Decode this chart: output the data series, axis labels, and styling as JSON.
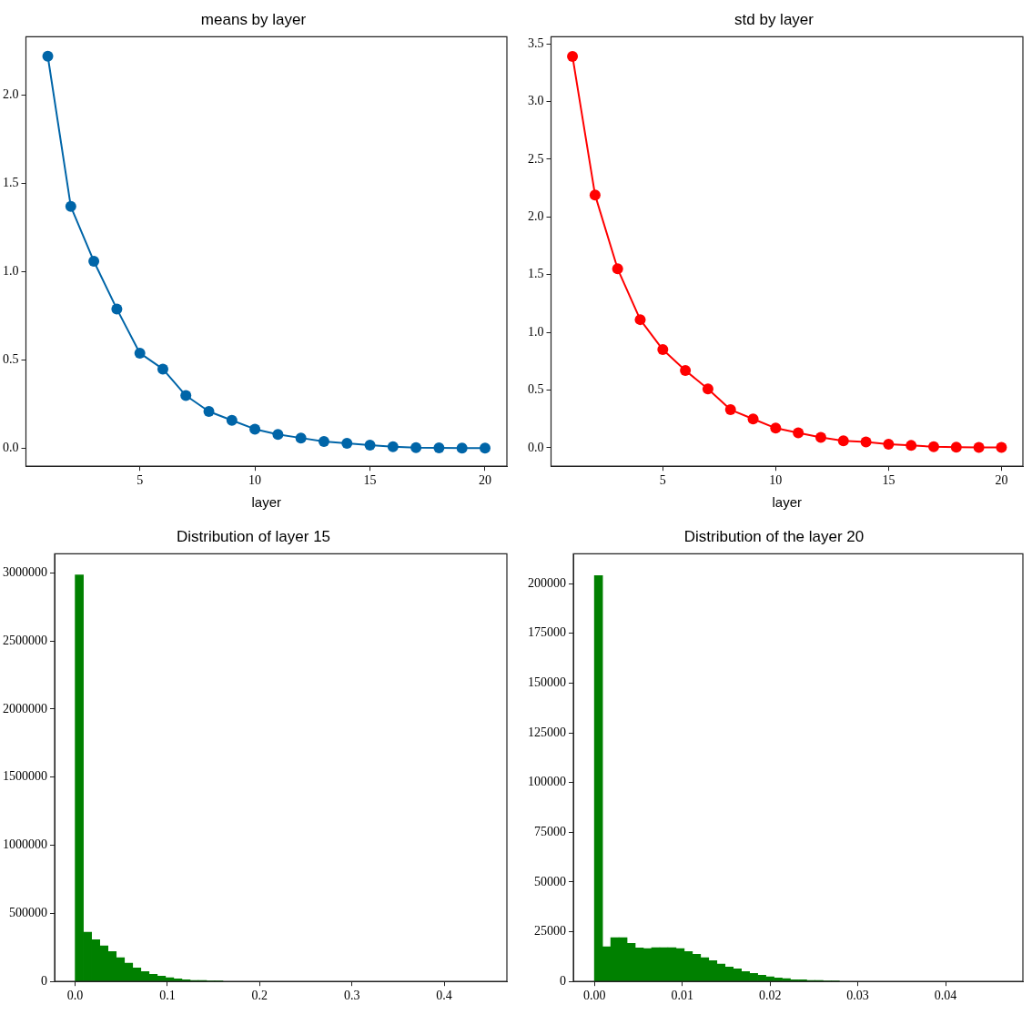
{
  "chart_data": [
    {
      "type": "line",
      "title": "means by layer",
      "xlabel": "layer",
      "x": [
        1,
        2,
        3,
        4,
        5,
        6,
        7,
        8,
        9,
        10,
        11,
        12,
        13,
        14,
        15,
        16,
        17,
        18,
        19,
        20
      ],
      "values": [
        2.22,
        1.37,
        1.06,
        0.79,
        0.54,
        0.45,
        0.3,
        0.21,
        0.16,
        0.11,
        0.08,
        0.06,
        0.04,
        0.03,
        0.02,
        0.01,
        0.005,
        0.004,
        0.003,
        0.003
      ],
      "color": "#0065a8",
      "marker": "circle",
      "line_style": "solid",
      "xlim": [
        0.05,
        20.95
      ],
      "xticks": [
        5,
        10,
        15,
        20
      ],
      "ylim": [
        -0.1,
        2.33
      ],
      "yticks": [
        {
          "value": 0,
          "label": "0.0"
        },
        {
          "value": 0.5,
          "label": "0.5"
        },
        {
          "value": 1,
          "label": "1.0"
        },
        {
          "value": 1.5,
          "label": "1.5"
        },
        {
          "value": 2,
          "label": "2.0"
        }
      ]
    },
    {
      "type": "line",
      "title": "std by layer",
      "xlabel": "layer",
      "x": [
        1,
        2,
        3,
        4,
        5,
        6,
        7,
        8,
        9,
        10,
        11,
        12,
        13,
        14,
        15,
        16,
        17,
        18,
        19,
        20
      ],
      "values": [
        3.39,
        2.19,
        1.55,
        1.11,
        0.85,
        0.67,
        0.51,
        0.33,
        0.25,
        0.17,
        0.13,
        0.09,
        0.06,
        0.05,
        0.03,
        0.02,
        0.01,
        0.005,
        0.004,
        0.003
      ],
      "color": "#ff0000",
      "marker": "circle",
      "line_style": "solid",
      "xlim": [
        0.05,
        20.95
      ],
      "xticks": [
        5,
        10,
        15,
        20
      ],
      "ylim": [
        -0.16,
        3.56
      ],
      "yticks": [
        {
          "value": 0,
          "label": "0.0"
        },
        {
          "value": 0.5,
          "label": "0.5"
        },
        {
          "value": 1,
          "label": "1.0"
        },
        {
          "value": 1.5,
          "label": "1.5"
        },
        {
          "value": 2,
          "label": "2.0"
        },
        {
          "value": 2.5,
          "label": "2.5"
        },
        {
          "value": 3,
          "label": "3.0"
        },
        {
          "value": 3.5,
          "label": "3.5"
        }
      ]
    },
    {
      "type": "histogram",
      "title": "Distribution of layer 15",
      "color": "#008000",
      "bins": [
        0,
        0.0089,
        0.0178,
        0.0267,
        0.0356,
        0.0445,
        0.0534,
        0.0623,
        0.0712,
        0.0801,
        0.089,
        0.0979,
        0.1068,
        0.1157,
        0.1246,
        0.1335,
        0.1424,
        0.1513,
        0.1602
      ],
      "values": [
        2985000,
        361000,
        307000,
        261000,
        220000,
        174000,
        134000,
        100000,
        73000,
        53000,
        40000,
        27000,
        20000,
        13000,
        7000,
        7000,
        1000,
        1000
      ],
      "xlim": [
        -0.0223,
        0.468
      ],
      "xticks": [
        {
          "value": 0,
          "label": "0.0"
        },
        {
          "value": 0.1,
          "label": "0.1"
        },
        {
          "value": 0.2,
          "label": "0.2"
        },
        {
          "value": 0.3,
          "label": "0.3"
        },
        {
          "value": 0.4,
          "label": "0.4"
        }
      ],
      "ylim": [
        0,
        3140000
      ],
      "yticks": [
        0,
        500000,
        1000000,
        1500000,
        2000000,
        2500000,
        3000000
      ]
    },
    {
      "type": "histogram",
      "title": "Distribution of the layer 20",
      "color": "#008000",
      "bins": [
        0,
        0.00093,
        0.00186,
        0.00279,
        0.00372,
        0.00465,
        0.00558,
        0.00651,
        0.00744,
        0.00837,
        0.0093,
        0.01023,
        0.01116,
        0.01209,
        0.01302,
        0.01395,
        0.01488,
        0.01581,
        0.01674,
        0.01767,
        0.0186,
        0.01953,
        0.02046,
        0.02139,
        0.02232,
        0.02325,
        0.02418,
        0.02511,
        0.02604,
        0.02697,
        0.0279
      ],
      "values": [
        204000,
        17400,
        22000,
        22000,
        19200,
        16900,
        16500,
        17000,
        17000,
        17000,
        16500,
        15100,
        13700,
        11900,
        10500,
        8700,
        7300,
        6400,
        5000,
        4100,
        3200,
        2300,
        1800,
        1400,
        900,
        900,
        500,
        500,
        300,
        200
      ],
      "xlim": [
        -0.0024,
        0.0488
      ],
      "xticks": [
        {
          "value": 0,
          "label": "0.00"
        },
        {
          "value": 0.01,
          "label": "0.01"
        },
        {
          "value": 0.02,
          "label": "0.02"
        },
        {
          "value": 0.03,
          "label": "0.03"
        },
        {
          "value": 0.04,
          "label": "0.04"
        }
      ],
      "ylim": [
        0,
        215000
      ],
      "yticks": [
        0,
        25000,
        50000,
        75000,
        100000,
        125000,
        150000,
        175000,
        200000
      ]
    }
  ]
}
